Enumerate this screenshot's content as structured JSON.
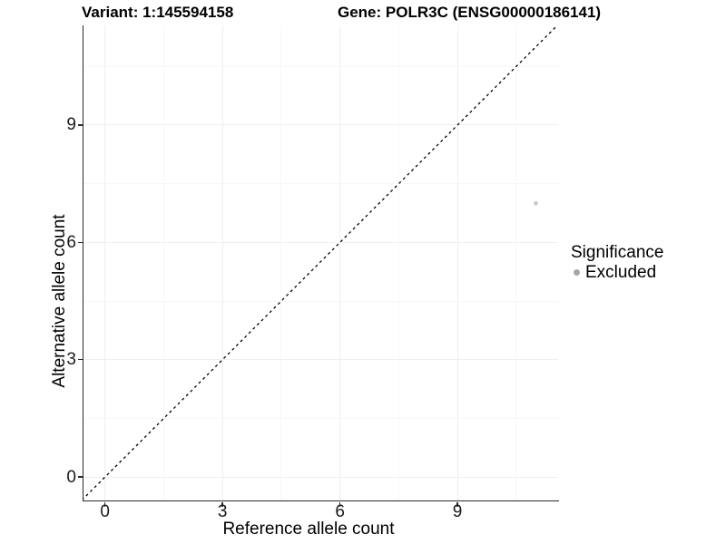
{
  "chart_data": {
    "type": "scatter",
    "title_left": "Variant: 1:145594158",
    "title_right": "Gene: POLR3C (ENSG00000186141)",
    "xlabel": "Reference allele count",
    "ylabel": "Alternative allele count",
    "xlim": [
      -0.55,
      11.57
    ],
    "ylim": [
      -0.6,
      11.55
    ],
    "xticks": [
      0,
      3,
      6,
      9
    ],
    "yticks": [
      0,
      3,
      6,
      9
    ],
    "xticks_minor": [
      1.5,
      4.5,
      7.5,
      10.5
    ],
    "yticks_minor": [
      1.5,
      4.5,
      7.5,
      10.5
    ],
    "grid": {
      "show": true,
      "major_color": "#efefef",
      "minor_color": "#f7f7f7"
    },
    "identity_line": {
      "slope": 1,
      "intercept": 0,
      "style": "dashed",
      "color": "#000000"
    },
    "series": [
      {
        "name": "Excluded",
        "color": "#c9c9c9",
        "point_radius": 2.4,
        "points": [
          {
            "x": 11,
            "y": 7
          }
        ]
      }
    ],
    "legend": {
      "title": "Significance",
      "position": "right",
      "items": [
        {
          "label": "Excluded",
          "color": "#a6a6a6"
        }
      ]
    }
  }
}
